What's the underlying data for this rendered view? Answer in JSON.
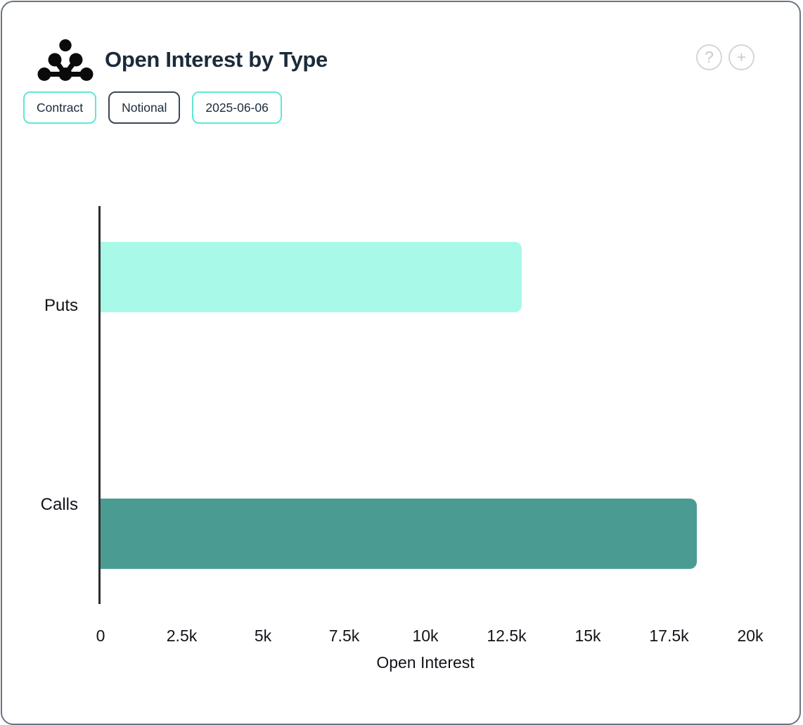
{
  "header": {
    "title": "Open Interest by Type",
    "help_glyph": "?",
    "add_glyph": "+"
  },
  "toolbar": {
    "buttons": [
      {
        "label": "Contract",
        "style": "teal"
      },
      {
        "label": "Notional",
        "style": "dark"
      },
      {
        "label": "2025-06-06",
        "style": "teal"
      }
    ]
  },
  "chart_data": {
    "type": "bar",
    "orientation": "horizontal",
    "title": "Open Interest by Type",
    "categories": [
      "Puts",
      "Calls"
    ],
    "values": [
      12965,
      18360
    ],
    "bar_colors": [
      "#a8f9e8",
      "#4a9c93"
    ],
    "xlabel": "Open Interest",
    "ylabel": "",
    "xlim": [
      0,
      20000
    ],
    "xticks": [
      {
        "value": 0,
        "label": "0"
      },
      {
        "value": 2500,
        "label": "2.5k"
      },
      {
        "value": 5000,
        "label": "5k"
      },
      {
        "value": 7500,
        "label": "7.5k"
      },
      {
        "value": 10000,
        "label": "10k"
      },
      {
        "value": 12500,
        "label": "12.5k"
      },
      {
        "value": 15000,
        "label": "15k"
      },
      {
        "value": 17500,
        "label": "17.5k"
      },
      {
        "value": 20000,
        "label": "20k"
      }
    ],
    "grid": false,
    "legend": false,
    "accent_colors": {
      "teal_border": "#5de9d3",
      "dark_border": "#3d4758",
      "axis_line": "#2e2e2e"
    }
  }
}
